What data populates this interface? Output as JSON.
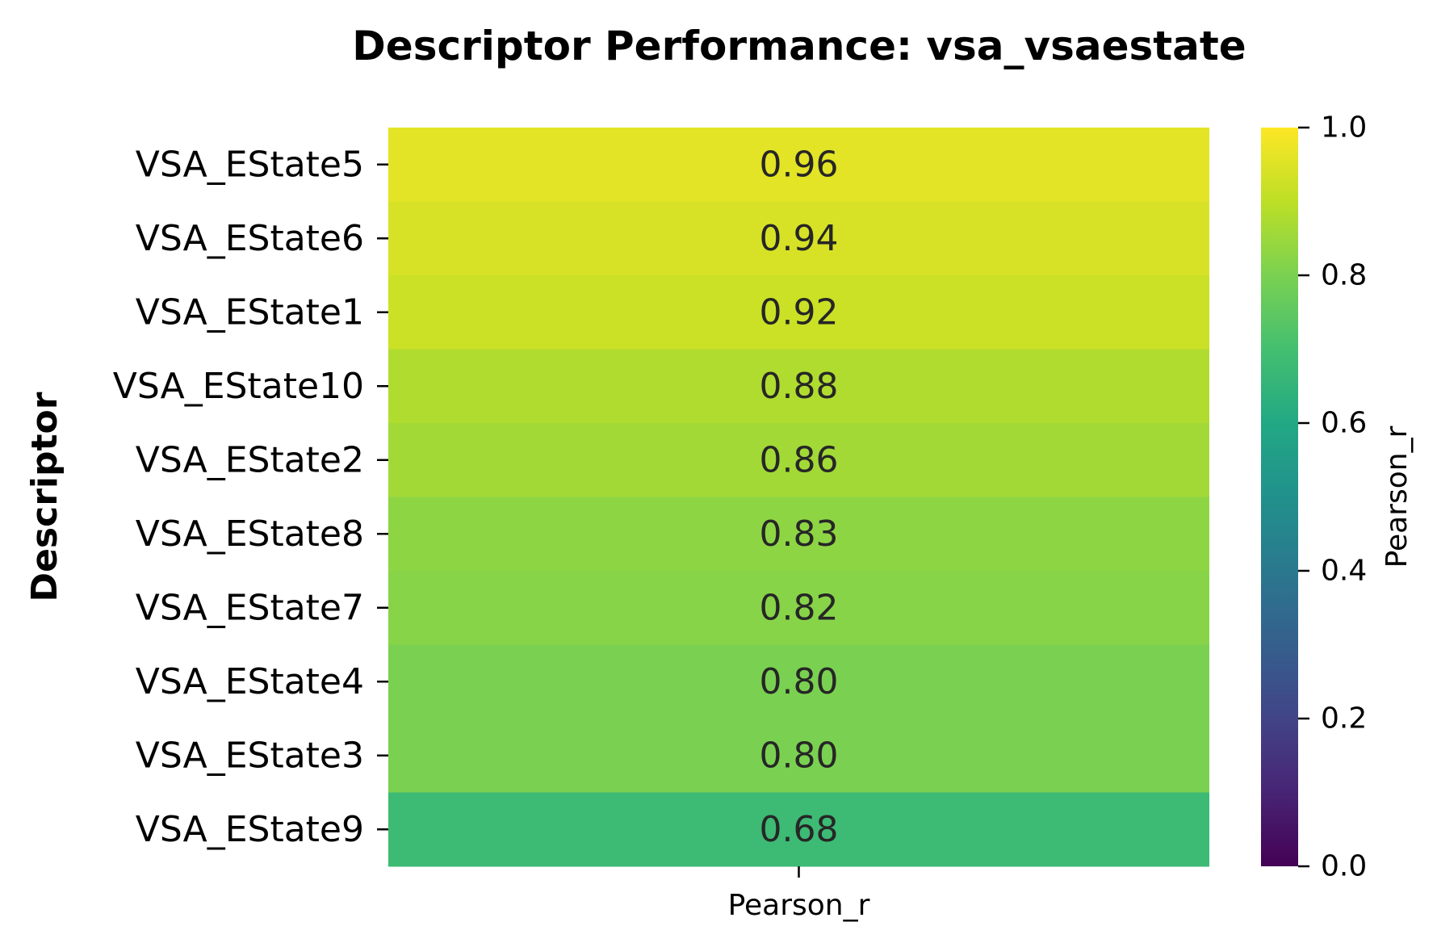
{
  "chart_data": {
    "type": "heatmap",
    "title": "Descriptor Performance: vsa_vsaestate",
    "xlabel": "",
    "ylabel": "Descriptor",
    "columns": [
      "Pearson_r"
    ],
    "rows": [
      "VSA_EState5",
      "VSA_EState6",
      "VSA_EState1",
      "VSA_EState10",
      "VSA_EState2",
      "VSA_EState8",
      "VSA_EState7",
      "VSA_EState4",
      "VSA_EState3",
      "VSA_EState9"
    ],
    "values": [
      0.96,
      0.94,
      0.92,
      0.88,
      0.86,
      0.83,
      0.82,
      0.8,
      0.8,
      0.68
    ],
    "value_labels": [
      "0.96",
      "0.94",
      "0.92",
      "0.88",
      "0.86",
      "0.83",
      "0.82",
      "0.80",
      "0.80",
      "0.68"
    ],
    "colormap": "viridis",
    "vmin": 0.0,
    "vmax": 1.0,
    "colorbar": {
      "label": "Pearson_r",
      "ticks": [
        0.0,
        0.2,
        0.4,
        0.6,
        0.8,
        1.0
      ],
      "tick_labels": [
        "0.0",
        "0.2",
        "0.4",
        "0.6",
        "0.8",
        "1.0"
      ]
    }
  }
}
